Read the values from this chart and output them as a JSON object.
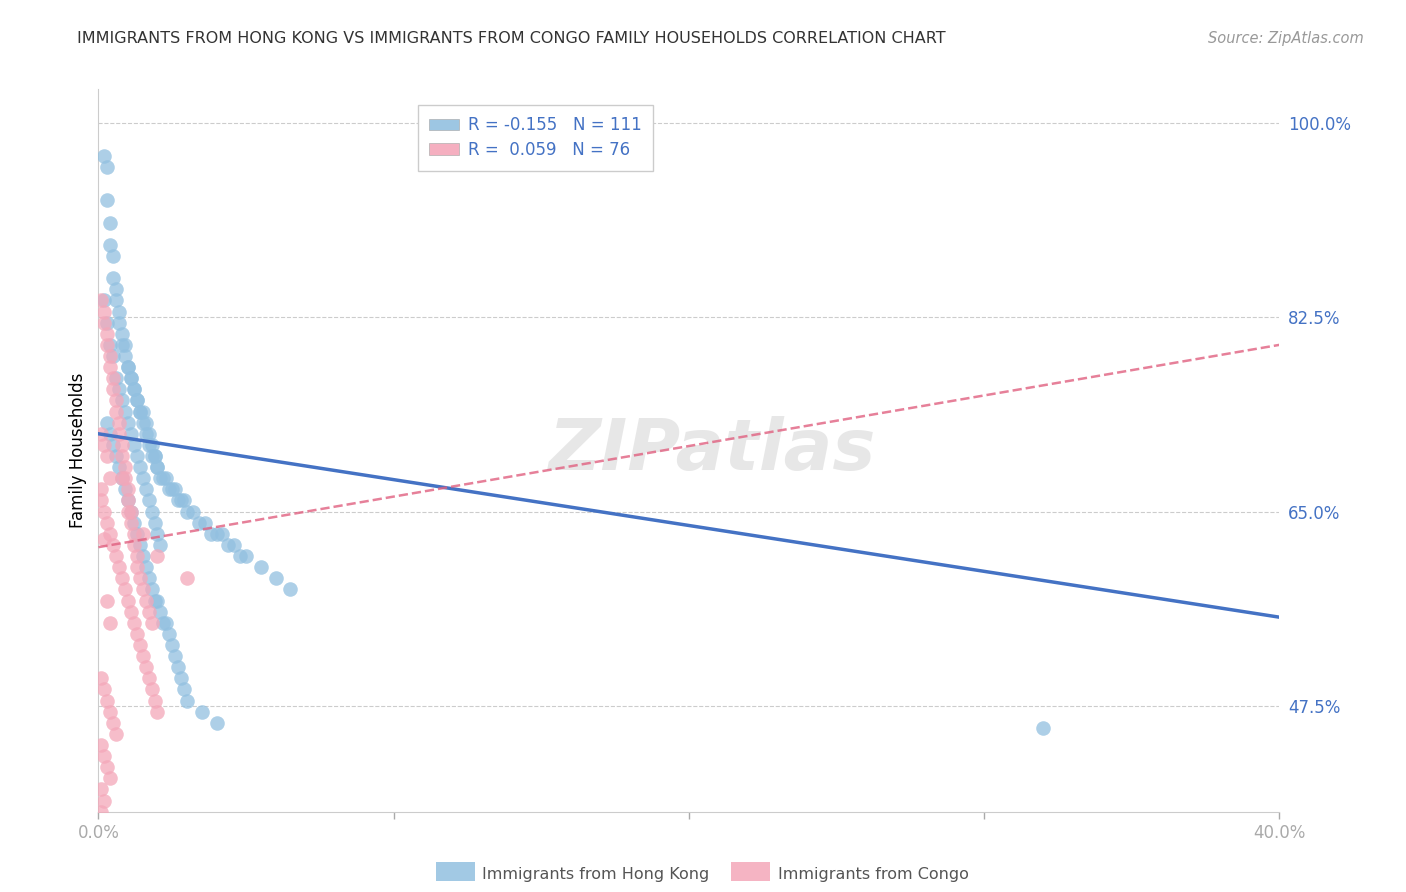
{
  "title": "IMMIGRANTS FROM HONG KONG VS IMMIGRANTS FROM CONGO FAMILY HOUSEHOLDS CORRELATION CHART",
  "source": "Source: ZipAtlas.com",
  "ylabel": "Family Households",
  "legend_blue_r": "R = -0.155",
  "legend_blue_n": "N = 111",
  "legend_pink_r": "R =  0.059",
  "legend_pink_n": "N = 76",
  "legend_blue_label": "Immigrants from Hong Kong",
  "legend_pink_label": "Immigrants from Congo",
  "xmin": 0.0,
  "xmax": 0.4,
  "ymin": 0.38,
  "ymax": 1.03,
  "blue_color": "#92c0e0",
  "pink_color": "#f4a7b9",
  "trendline_blue_color": "#4472c4",
  "trendline_pink_color": "#e06080",
  "background": "#ffffff",
  "blue_trendline_x0": 0.0,
  "blue_trendline_y0": 0.72,
  "blue_trendline_x1": 0.4,
  "blue_trendline_y1": 0.555,
  "pink_trendline_x0": 0.0,
  "pink_trendline_y0": 0.618,
  "pink_trendline_x1": 0.4,
  "pink_trendline_y1": 0.8,
  "blue_scatter_x": [
    0.002,
    0.003,
    0.003,
    0.004,
    0.004,
    0.005,
    0.005,
    0.006,
    0.006,
    0.007,
    0.007,
    0.008,
    0.008,
    0.009,
    0.009,
    0.01,
    0.01,
    0.011,
    0.011,
    0.012,
    0.012,
    0.013,
    0.013,
    0.014,
    0.014,
    0.015,
    0.015,
    0.016,
    0.016,
    0.017,
    0.017,
    0.018,
    0.018,
    0.019,
    0.019,
    0.02,
    0.02,
    0.021,
    0.022,
    0.023,
    0.024,
    0.025,
    0.026,
    0.027,
    0.028,
    0.029,
    0.03,
    0.032,
    0.034,
    0.036,
    0.038,
    0.04,
    0.042,
    0.044,
    0.046,
    0.048,
    0.05,
    0.055,
    0.06,
    0.065,
    0.002,
    0.003,
    0.004,
    0.005,
    0.006,
    0.007,
    0.008,
    0.009,
    0.01,
    0.011,
    0.012,
    0.013,
    0.014,
    0.015,
    0.016,
    0.017,
    0.018,
    0.019,
    0.02,
    0.021,
    0.003,
    0.004,
    0.005,
    0.006,
    0.007,
    0.008,
    0.009,
    0.01,
    0.011,
    0.012,
    0.013,
    0.014,
    0.015,
    0.016,
    0.017,
    0.018,
    0.019,
    0.02,
    0.021,
    0.022,
    0.023,
    0.024,
    0.025,
    0.026,
    0.027,
    0.028,
    0.029,
    0.03,
    0.035,
    0.04,
    0.32
  ],
  "blue_scatter_y": [
    0.97,
    0.96,
    0.93,
    0.91,
    0.89,
    0.88,
    0.86,
    0.85,
    0.84,
    0.83,
    0.82,
    0.81,
    0.8,
    0.8,
    0.79,
    0.78,
    0.78,
    0.77,
    0.77,
    0.76,
    0.76,
    0.75,
    0.75,
    0.74,
    0.74,
    0.74,
    0.73,
    0.73,
    0.72,
    0.72,
    0.71,
    0.71,
    0.7,
    0.7,
    0.7,
    0.69,
    0.69,
    0.68,
    0.68,
    0.68,
    0.67,
    0.67,
    0.67,
    0.66,
    0.66,
    0.66,
    0.65,
    0.65,
    0.64,
    0.64,
    0.63,
    0.63,
    0.63,
    0.62,
    0.62,
    0.61,
    0.61,
    0.6,
    0.59,
    0.58,
    0.84,
    0.82,
    0.8,
    0.79,
    0.77,
    0.76,
    0.75,
    0.74,
    0.73,
    0.72,
    0.71,
    0.7,
    0.69,
    0.68,
    0.67,
    0.66,
    0.65,
    0.64,
    0.63,
    0.62,
    0.73,
    0.72,
    0.71,
    0.7,
    0.69,
    0.68,
    0.67,
    0.66,
    0.65,
    0.64,
    0.63,
    0.62,
    0.61,
    0.6,
    0.59,
    0.58,
    0.57,
    0.57,
    0.56,
    0.55,
    0.55,
    0.54,
    0.53,
    0.52,
    0.51,
    0.5,
    0.49,
    0.48,
    0.47,
    0.46,
    0.455
  ],
  "pink_scatter_x": [
    0.001,
    0.002,
    0.002,
    0.003,
    0.003,
    0.004,
    0.004,
    0.005,
    0.005,
    0.006,
    0.006,
    0.007,
    0.007,
    0.008,
    0.008,
    0.009,
    0.009,
    0.01,
    0.01,
    0.011,
    0.011,
    0.012,
    0.012,
    0.013,
    0.013,
    0.014,
    0.015,
    0.016,
    0.017,
    0.018,
    0.001,
    0.002,
    0.003,
    0.004,
    0.005,
    0.006,
    0.007,
    0.008,
    0.009,
    0.01,
    0.011,
    0.012,
    0.013,
    0.014,
    0.015,
    0.016,
    0.017,
    0.018,
    0.019,
    0.02,
    0.001,
    0.002,
    0.003,
    0.004,
    0.005,
    0.006,
    0.001,
    0.002,
    0.003,
    0.004,
    0.001,
    0.002,
    0.001,
    0.002,
    0.001,
    0.001,
    0.002,
    0.003,
    0.004,
    0.01,
    0.015,
    0.02,
    0.03,
    0.003,
    0.004,
    0.008
  ],
  "pink_scatter_y": [
    0.84,
    0.83,
    0.82,
    0.81,
    0.8,
    0.79,
    0.78,
    0.77,
    0.76,
    0.75,
    0.74,
    0.73,
    0.72,
    0.71,
    0.7,
    0.69,
    0.68,
    0.67,
    0.66,
    0.65,
    0.64,
    0.63,
    0.62,
    0.61,
    0.6,
    0.59,
    0.58,
    0.57,
    0.56,
    0.55,
    0.66,
    0.65,
    0.64,
    0.63,
    0.62,
    0.61,
    0.6,
    0.59,
    0.58,
    0.57,
    0.56,
    0.55,
    0.54,
    0.53,
    0.52,
    0.51,
    0.5,
    0.49,
    0.48,
    0.47,
    0.5,
    0.49,
    0.48,
    0.47,
    0.46,
    0.45,
    0.44,
    0.43,
    0.42,
    0.41,
    0.4,
    0.39,
    0.38,
    0.625,
    0.67,
    0.72,
    0.71,
    0.7,
    0.68,
    0.65,
    0.63,
    0.61,
    0.59,
    0.57,
    0.55,
    0.68
  ]
}
